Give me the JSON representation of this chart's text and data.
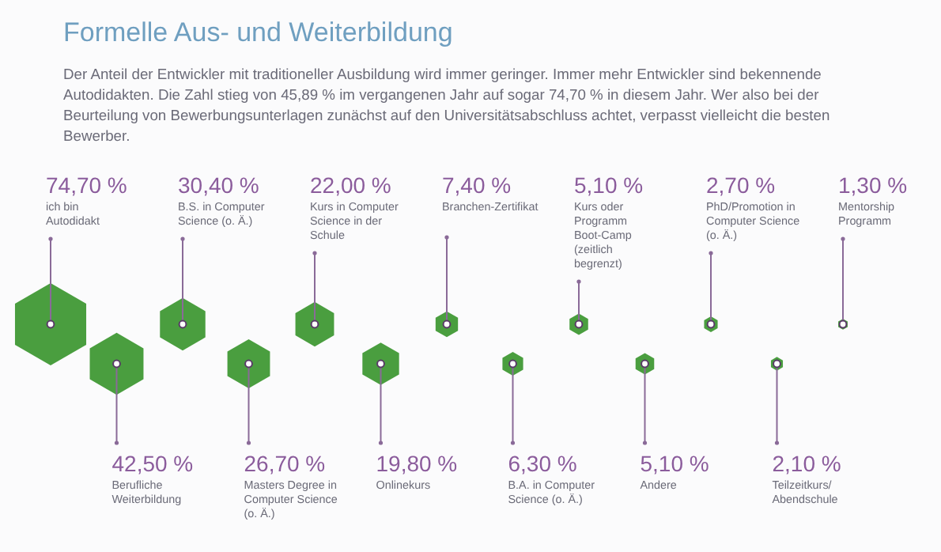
{
  "chart_data": {
    "type": "other",
    "title": "Formelle Aus- und Weiterbildung",
    "subtitle": "Der Anteil der Entwickler mit traditioneller Ausbildung wird immer geringer. Immer mehr Entwickler sind bekennende Autodidakten. Die Zahl stieg von 45,89 % im vergangenen Jahr auf sogar 74,70 % in diesem Jahr. Wer also bei der Beurteilung von Bewerbungsunterlagen zunächst auf den Universitätsabschluss achtet, verpasst vielleicht die besten Bewerber.",
    "categories": [
      "ich bin Autodidakt",
      "Berufliche Weiterbildung",
      "B.S. in Computer Science (o. Ä.)",
      "Masters Degree in Computer Science (o. Ä.)",
      "Kurs in Computer Science in der Schule",
      "Onlinekurs",
      "Branchen-Zertifikat",
      "B.A. in Computer Science (o. Ä.)",
      "Kurs oder Programm Boot-Camp (zeitlich begrenzt)",
      "Andere",
      "PhD/Promotion in Computer Science (o. Ä.)",
      "Teilzeitkurs/ Abendschule",
      "Mentorship Programm"
    ],
    "values": [
      74.7,
      42.5,
      30.4,
      26.7,
      22.0,
      19.8,
      7.4,
      6.3,
      5.1,
      5.1,
      2.7,
      2.1,
      1.3
    ],
    "value_labels": [
      "74,70 %",
      "42,50 %",
      "30,40 %",
      "26,70 %",
      "22,00 %",
      "19,80 %",
      "7,40 %",
      "6,30 %",
      "5,10 %",
      "5,10 %",
      "2,70 %",
      "2,10 %",
      "1,30 %"
    ],
    "color": "#4a9e3f"
  }
}
